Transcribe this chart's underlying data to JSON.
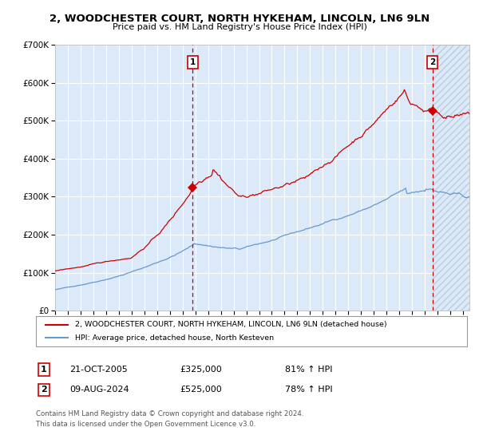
{
  "title_line1": "2, WOODCHESTER COURT, NORTH HYKEHAM, LINCOLN, LN6 9LN",
  "title_line2": "Price paid vs. HM Land Registry's House Price Index (HPI)",
  "legend_label_red": "2, WOODCHESTER COURT, NORTH HYKEHAM, LINCOLN, LN6 9LN (detached house)",
  "legend_label_blue": "HPI: Average price, detached house, North Kesteven",
  "annotation1_date": "21-OCT-2005",
  "annotation1_price": "£325,000",
  "annotation1_hpi": "81% ↑ HPI",
  "annotation2_date": "09-AUG-2024",
  "annotation2_price": "£525,000",
  "annotation2_hpi": "78% ↑ HPI",
  "footer": "Contains HM Land Registry data © Crown copyright and database right 2024.\nThis data is licensed under the Open Government Licence v3.0.",
  "ylim": [
    0,
    700000
  ],
  "yticks": [
    0,
    100000,
    200000,
    300000,
    400000,
    500000,
    600000,
    700000
  ],
  "ytick_labels": [
    "£0",
    "£100K",
    "£200K",
    "£300K",
    "£400K",
    "£500K",
    "£600K",
    "£700K"
  ],
  "fig_bg_color": "#ffffff",
  "plot_bg_color": "#dce9f8",
  "red_color": "#cc0000",
  "blue_color": "#6699cc",
  "grid_color": "#ffffff",
  "marker1_x": 2005.8,
  "marker1_y": 325000,
  "marker2_x": 2024.6,
  "marker2_y": 525000,
  "vline1_x": 2005.8,
  "vline2_x": 2024.6,
  "hatch_start_x": 2024.6,
  "xmin": 1995.0,
  "xmax": 2027.5,
  "xtick_start": 1995,
  "xtick_end": 2027
}
